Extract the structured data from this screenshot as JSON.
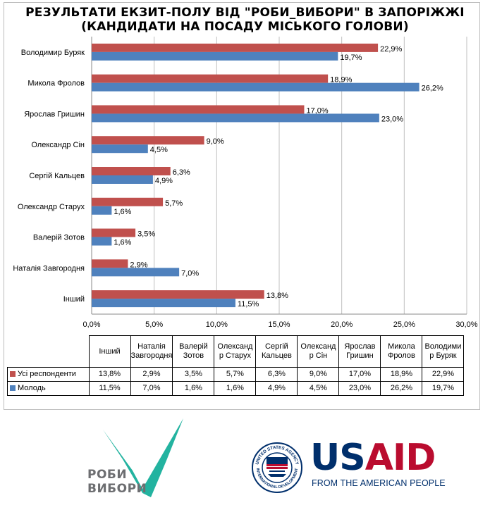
{
  "title_line1": "РЕЗУЛЬТАТИ ЕКЗИТ-ПОЛУ ВІД \"РОБИ_ВИБОРИ\" В ЗАПОРІЖЖІ",
  "title_line2": "(КАНДИДАТИ НА ПОСАДУ МІСЬКОГО ГОЛОВИ)",
  "colors": {
    "all": "#c0504d",
    "youth": "#4f81bd",
    "grid": "#bfbfbf",
    "logo_teal": "#23b3a0"
  },
  "chart_data": {
    "type": "bar",
    "orientation": "horizontal",
    "categories": [
      "Володимир Буряк",
      "Микола Фролов",
      "Ярослав Гришин",
      "Олександр Сін",
      "Сергій Кальцев",
      "Олександр Старух",
      "Валерій Зотов",
      "Наталія Завгородня",
      "Інший"
    ],
    "series": [
      {
        "name": "Усі респонденти",
        "values": [
          22.9,
          18.9,
          17.0,
          9.0,
          6.3,
          5.7,
          3.5,
          2.9,
          13.8
        ],
        "labels": [
          "22,9%",
          "18,9%",
          "17,0%",
          "9,0%",
          "6,3%",
          "5,7%",
          "3,5%",
          "2,9%",
          "13,8%"
        ]
      },
      {
        "name": "Молодь",
        "values": [
          19.7,
          26.2,
          23.0,
          4.5,
          4.9,
          1.6,
          1.6,
          7.0,
          11.5
        ],
        "labels": [
          "19,7%",
          "26,2%",
          "23,0%",
          "4,5%",
          "4,9%",
          "1,6%",
          "1,6%",
          "7,0%",
          "11,5%"
        ]
      }
    ],
    "xlim": [
      0,
      30
    ],
    "xticks": [
      0,
      5,
      10,
      15,
      20,
      25,
      30
    ],
    "xtick_labels": [
      "0,0%",
      "5,0%",
      "10,0%",
      "15,0%",
      "20,0%",
      "25,0%",
      "30,0%"
    ],
    "grid": "vertical",
    "legend": "data-table"
  },
  "table": {
    "headers": [
      "Інший",
      "Наталія Завгородня",
      "Валерій Зотов",
      "Олександ р Старух",
      "Сергій Кальцев",
      "Олександ р Сін",
      "Ярослав Гришин",
      "Микола Фролов",
      "Володими р Буряк"
    ],
    "rows": [
      {
        "label": "Усі респонденти",
        "values": [
          "13,8%",
          "2,9%",
          "3,5%",
          "5,7%",
          "6,3%",
          "9,0%",
          "17,0%",
          "18,9%",
          "22,9%"
        ]
      },
      {
        "label": "Молодь",
        "values": [
          "11,5%",
          "7,0%",
          "1,6%",
          "1,6%",
          "4,9%",
          "4,5%",
          "23,0%",
          "26,2%",
          "19,7%"
        ]
      }
    ]
  },
  "logos": {
    "robyvybory_line1": "РОБИ",
    "robyvybory_line2": "ВИБОРИ",
    "usaid_us": "US",
    "usaid_aid": "AID",
    "usaid_tagline": "FROM THE AMERICAN PEOPLE",
    "seal_text_top": "UNITED STATES AGENCY",
    "seal_text_bottom": "INTERNATIONAL DEVELOPMENT"
  }
}
